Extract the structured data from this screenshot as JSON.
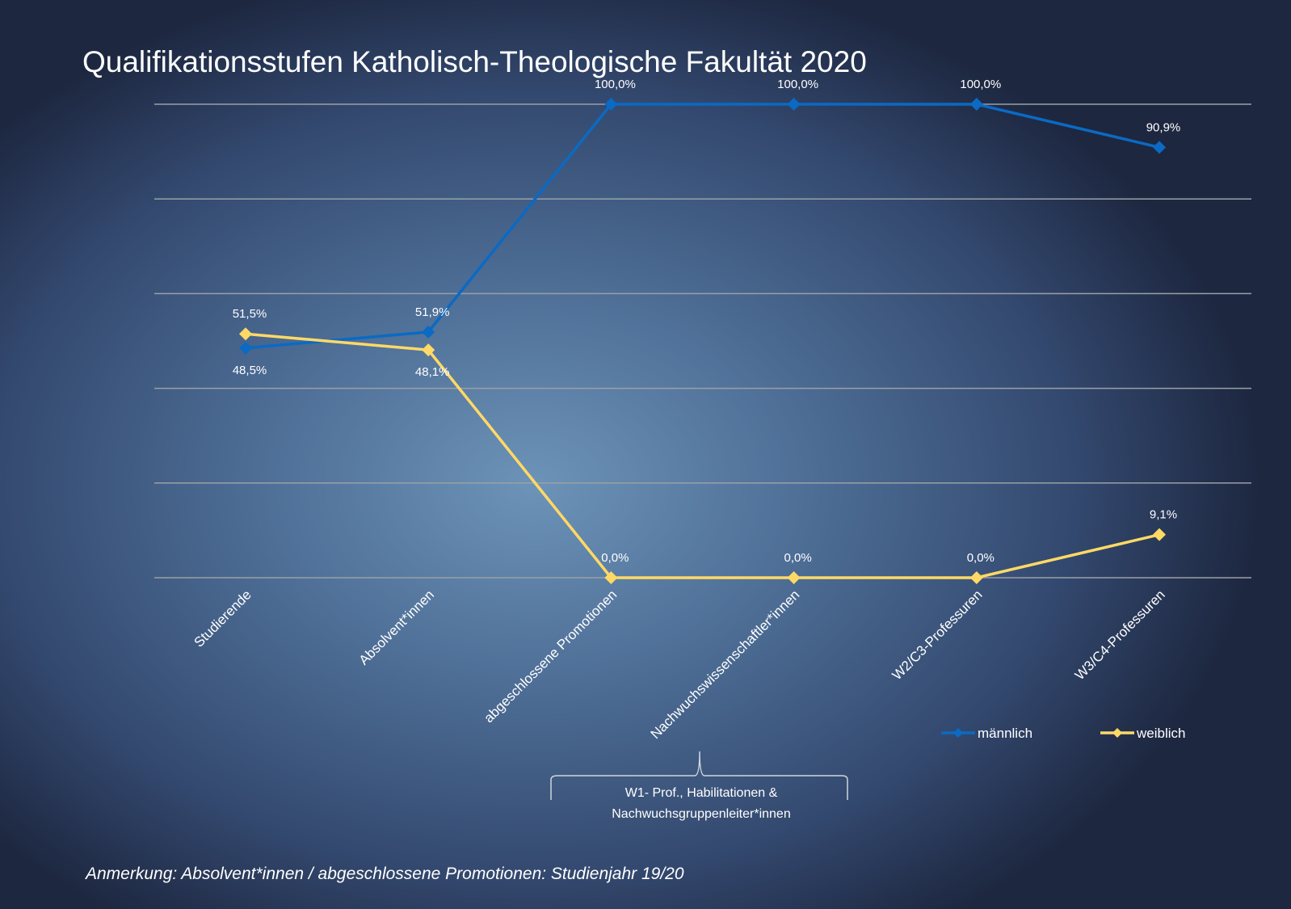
{
  "chart_data": {
    "type": "line",
    "title": "Qualifikationsstufen Katholisch-Theologische Fakultät 2020",
    "categories": [
      "Studierende",
      "Absolvent*innen",
      "abgeschlossene Promotionen",
      "Nachwuchswissenschaftler*innen",
      "W2/C3-Professuren",
      "W3/C4-Professuren"
    ],
    "series": [
      {
        "name": "männlich",
        "color": "#0a6ac4",
        "values": [
          48.5,
          51.9,
          100.0,
          100.0,
          100.0,
          90.9
        ],
        "labels": [
          "48,5%",
          "51,9%",
          "100,0%",
          "100,0%",
          "100,0%",
          "90,9%"
        ]
      },
      {
        "name": "weiblich",
        "color": "#ffd966",
        "values": [
          51.5,
          48.1,
          0.0,
          0.0,
          0.0,
          9.1
        ],
        "labels": [
          "51,5%",
          "48,1%",
          "0,0%",
          "0,0%",
          "0,0%",
          "9,1%"
        ]
      }
    ],
    "ylim": [
      0,
      100
    ],
    "grid": true,
    "legend": "bottom-right",
    "annotation": "W1- Prof., Habilitationen & Nachwuchsgruppenleiter*innen",
    "note": "Anmerkung: Absolvent*innen / abgeschlossene Promotionen: Studienjahr 19/20"
  },
  "annotation_lines": [
    "W1- Prof., Habilitationen &",
    "Nachwuchsgruppenleiter*innen"
  ]
}
